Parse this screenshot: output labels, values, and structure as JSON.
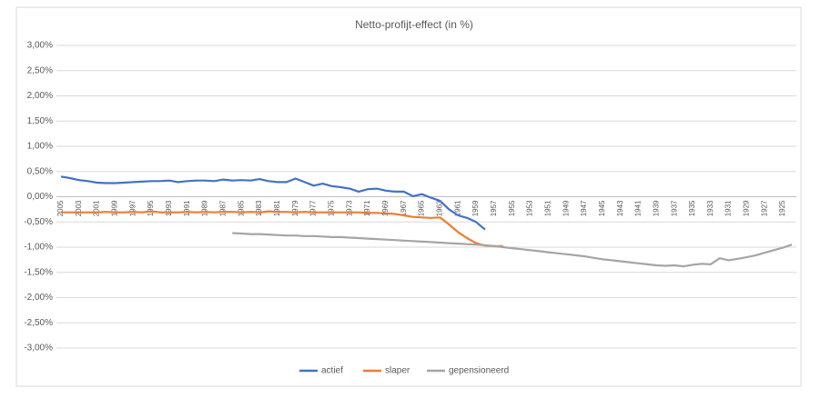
{
  "chart_data": {
    "type": "line",
    "title": "Netto-profijt-effect (in %)",
    "categories": [
      "2005",
      null,
      "2003",
      null,
      "2001",
      null,
      "1999",
      null,
      "1997",
      null,
      "1995",
      null,
      "1993",
      null,
      "1991",
      null,
      "1989",
      null,
      "1987",
      null,
      "1985",
      null,
      "1983",
      null,
      "1981",
      null,
      "1979",
      null,
      "1977",
      null,
      "1975",
      null,
      "1973",
      null,
      "1971",
      null,
      "1969",
      null,
      "1967",
      null,
      "1965",
      null,
      "1963",
      null,
      "1961",
      null,
      "1959",
      null,
      "1957",
      null,
      "1955",
      null,
      "1953",
      null,
      "1951",
      null,
      "1949",
      null,
      "1947",
      null,
      "1945",
      null,
      "1943",
      null,
      "1941",
      null,
      "1939",
      null,
      "1937",
      null,
      "1935",
      null,
      "1933",
      null,
      "1931",
      null,
      "1929",
      null,
      "1927",
      null,
      "1925",
      null
    ],
    "series": [
      {
        "name": "actief",
        "color": "#4472c4",
        "values": [
          0.4,
          0.37,
          0.33,
          0.31,
          0.28,
          0.27,
          0.27,
          0.28,
          0.29,
          0.3,
          0.31,
          0.31,
          0.32,
          0.29,
          0.31,
          0.32,
          0.32,
          0.31,
          0.34,
          0.32,
          0.33,
          0.32,
          0.35,
          0.31,
          0.29,
          0.29,
          0.36,
          0.29,
          0.22,
          0.26,
          0.21,
          0.19,
          0.16,
          0.1,
          0.15,
          0.16,
          0.12,
          0.1,
          0.1,
          0.01,
          0.05,
          -0.02,
          -0.08,
          -0.25,
          -0.37,
          -0.42,
          -0.5,
          -0.65,
          null,
          null,
          null,
          null,
          null,
          null,
          null,
          null,
          null,
          null,
          null,
          null,
          null,
          null,
          null,
          null,
          null,
          null,
          null,
          null,
          null,
          null,
          null,
          null,
          null,
          null,
          null,
          null,
          null,
          null,
          null,
          null,
          null,
          null
        ]
      },
      {
        "name": "slaper",
        "color": "#ed7d31",
        "values": [
          -0.31,
          -0.31,
          -0.31,
          -0.31,
          -0.31,
          -0.3,
          -0.31,
          -0.31,
          -0.3,
          -0.31,
          -0.29,
          -0.31,
          -0.31,
          -0.31,
          -0.3,
          -0.31,
          -0.3,
          -0.31,
          -0.3,
          -0.3,
          -0.31,
          -0.3,
          -0.31,
          -0.29,
          -0.3,
          -0.3,
          -0.31,
          -0.3,
          -0.31,
          -0.31,
          -0.31,
          -0.31,
          -0.31,
          -0.31,
          -0.32,
          -0.32,
          -0.33,
          -0.34,
          -0.37,
          -0.4,
          -0.41,
          -0.42,
          -0.41,
          -0.55,
          -0.7,
          -0.82,
          -0.92,
          -0.97,
          -0.98,
          -0.98,
          null,
          null,
          null,
          null,
          null,
          null,
          null,
          null,
          null,
          null,
          null,
          null,
          null,
          null,
          null,
          null,
          null,
          null,
          null,
          null,
          null,
          null,
          null,
          null,
          null,
          null,
          null,
          null,
          null,
          null,
          null,
          null
        ]
      },
      {
        "name": "gepensioneerd",
        "color": "#a5a5a5",
        "values": [
          null,
          null,
          null,
          null,
          null,
          null,
          null,
          null,
          null,
          null,
          null,
          null,
          null,
          null,
          null,
          null,
          null,
          null,
          null,
          -0.72,
          -0.73,
          -0.74,
          -0.74,
          -0.75,
          -0.76,
          -0.77,
          -0.77,
          -0.78,
          -0.78,
          -0.79,
          -0.8,
          -0.8,
          -0.81,
          -0.82,
          -0.83,
          -0.84,
          -0.85,
          -0.86,
          -0.87,
          -0.88,
          -0.89,
          -0.9,
          -0.91,
          -0.92,
          -0.93,
          -0.94,
          -0.95,
          -0.96,
          -0.98,
          -1.0,
          -1.02,
          -1.04,
          -1.06,
          -1.08,
          -1.1,
          -1.12,
          -1.14,
          -1.16,
          -1.18,
          -1.21,
          -1.24,
          -1.26,
          -1.28,
          -1.3,
          -1.32,
          -1.34,
          -1.36,
          -1.37,
          -1.36,
          -1.38,
          -1.35,
          -1.33,
          -1.34,
          -1.22,
          -1.26,
          -1.23,
          -1.2,
          -1.16,
          -1.11,
          -1.06,
          -1.01,
          -0.95
        ]
      }
    ],
    "ylim": [
      -3,
      3
    ],
    "yticks": [
      {
        "value": 3,
        "label": "3,00%"
      },
      {
        "value": 2.5,
        "label": "2,50%"
      },
      {
        "value": 2,
        "label": "2,00%"
      },
      {
        "value": 1.5,
        "label": "1,50%"
      },
      {
        "value": 1,
        "label": "1,00%"
      },
      {
        "value": 0.5,
        "label": "0,50%"
      },
      {
        "value": 0,
        "label": "0,00%"
      },
      {
        "value": -0.5,
        "label": "-0,50%"
      },
      {
        "value": -1,
        "label": "-1,00%"
      },
      {
        "value": -1.5,
        "label": "-1,50%"
      },
      {
        "value": -2,
        "label": "-2,00%"
      },
      {
        "value": -2.5,
        "label": "-2,50%"
      },
      {
        "value": -3,
        "label": "-3,00%"
      }
    ],
    "grid": true,
    "legend": "bottom"
  }
}
